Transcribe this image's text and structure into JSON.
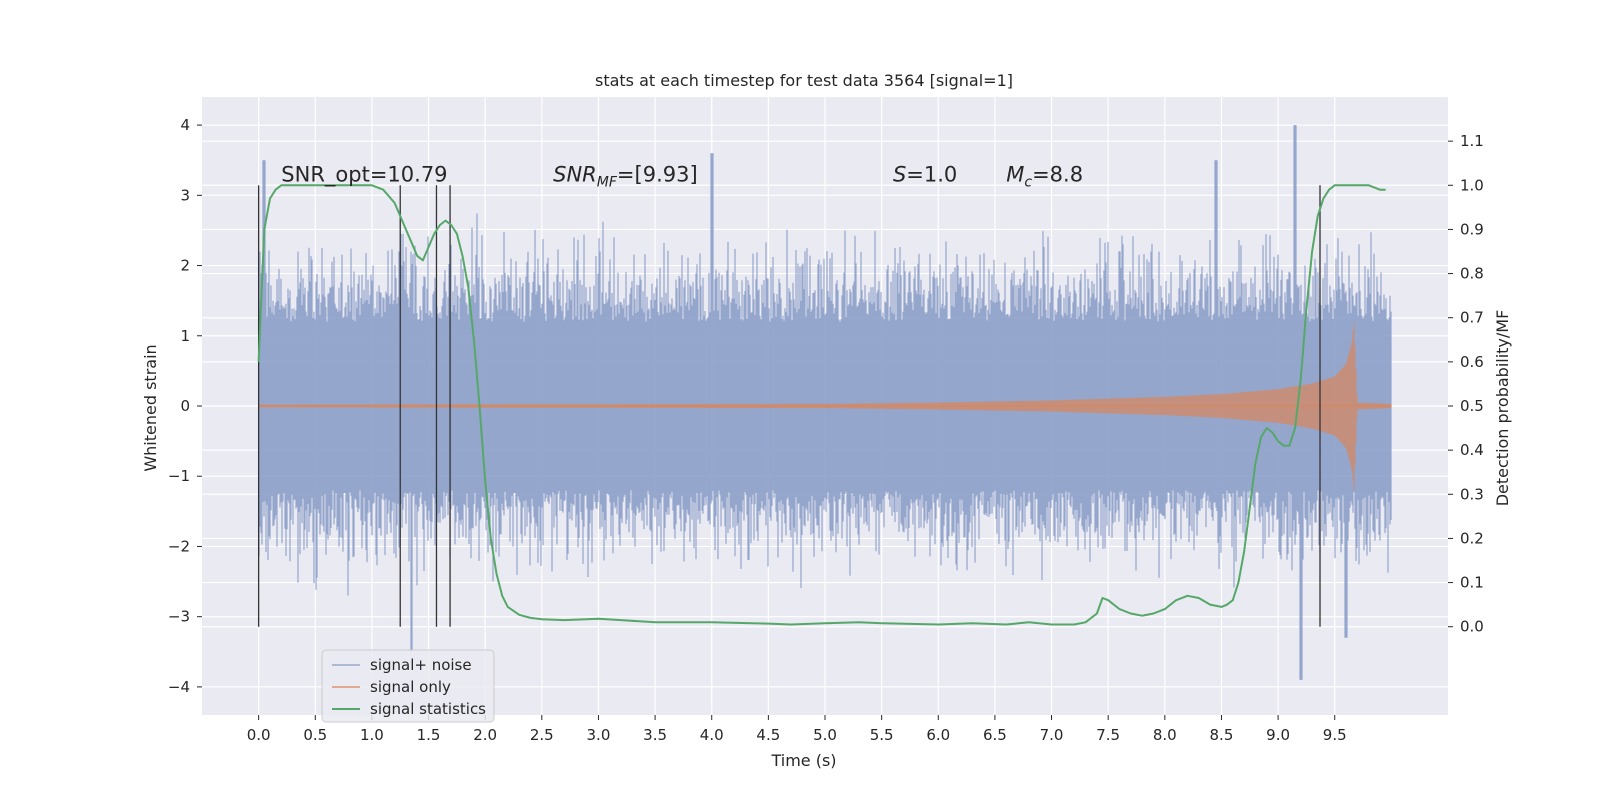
{
  "chart_data": {
    "type": "line",
    "title": "stats at each timestep for test data 3564 [signal=1]",
    "xlabel": "Time (s)",
    "ylabel_left": "Whitened strain",
    "ylabel_right": "Detection probability/MF",
    "xlim": [
      -0.5,
      10.5
    ],
    "ylim_left": [
      -4.4,
      4.4
    ],
    "ylim_right": [
      -0.2,
      1.2
    ],
    "xticks": [
      0.0,
      0.5,
      1.0,
      1.5,
      2.0,
      2.5,
      3.0,
      3.5,
      4.0,
      4.5,
      5.0,
      5.5,
      6.0,
      6.5,
      7.0,
      7.5,
      8.0,
      8.5,
      9.0,
      9.5
    ],
    "xtick_labels": [
      "0.0",
      "0.5",
      "1.0",
      "1.5",
      "2.0",
      "2.5",
      "3.0",
      "3.5",
      "4.0",
      "4.5",
      "5.0",
      "5.5",
      "6.0",
      "6.5",
      "7.0",
      "7.5",
      "8.0",
      "8.5",
      "9.0",
      "9.5"
    ],
    "yticks_left": [
      -4,
      -3,
      -2,
      -1,
      0,
      1,
      2,
      3,
      4
    ],
    "ytick_labels_left": [
      "−4",
      "−3",
      "−2",
      "−1",
      "0",
      "1",
      "2",
      "3",
      "4"
    ],
    "yticks_right": [
      0.0,
      0.1,
      0.2,
      0.3,
      0.4,
      0.5,
      0.6,
      0.7,
      0.8,
      0.9,
      1.0,
      1.1
    ],
    "ytick_labels_right": [
      "0.0",
      "0.1",
      "0.2",
      "0.3",
      "0.4",
      "0.5",
      "0.6",
      "0.7",
      "0.8",
      "0.9",
      "1.0",
      "1.1"
    ],
    "grid": true,
    "legend_position": "lower-left",
    "annotations": [
      {
        "text": "SNR_opt=10.79",
        "x": 0.2,
        "y": 3.2
      },
      {
        "text": "SNR_MF=[9.93]",
        "x": 2.6,
        "y": 3.2
      },
      {
        "text": "S=1.0",
        "x": 5.6,
        "y": 3.2
      },
      {
        "text": "M_c=8.8",
        "x": 6.6,
        "y": 3.2
      }
    ],
    "vertical_lines_x": [
      0.0,
      1.25,
      1.57,
      1.69,
      9.37
    ],
    "series": [
      {
        "name": "signal+ noise",
        "color": "#8c9ec9",
        "axis": "left",
        "description_values": {
          "x_range": [
            0.0,
            10.0
          ],
          "typical_range": [
            -2.0,
            2.0
          ],
          "peaks": [
            [
              0.05,
              3.5
            ],
            [
              1.25,
              2.2
            ],
            [
              1.35,
              -3.5
            ],
            [
              4.0,
              3.6
            ],
            [
              9.15,
              4.0
            ],
            [
              9.2,
              -3.9
            ],
            [
              8.45,
              3.5
            ],
            [
              9.6,
              -3.3
            ]
          ]
        }
      },
      {
        "name": "signal only",
        "color": "#dd8452",
        "axis": "left",
        "envelope": {
          "x": [
            0.0,
            5.0,
            6.0,
            7.0,
            8.0,
            8.5,
            9.0,
            9.3,
            9.5,
            9.6,
            9.65,
            9.67,
            9.7,
            10.0
          ],
          "amplitude": [
            0.02,
            0.03,
            0.05,
            0.08,
            0.13,
            0.17,
            0.24,
            0.32,
            0.42,
            0.6,
            0.9,
            1.2,
            0.05,
            0.03
          ]
        }
      },
      {
        "name": "signal statistics",
        "color": "#55a868",
        "axis": "right",
        "x": [
          0.0,
          0.05,
          0.1,
          0.15,
          0.2,
          0.3,
          0.5,
          0.7,
          0.9,
          1.0,
          1.1,
          1.2,
          1.3,
          1.35,
          1.4,
          1.45,
          1.5,
          1.55,
          1.6,
          1.65,
          1.7,
          1.75,
          1.8,
          1.85,
          1.9,
          1.95,
          2.0,
          2.05,
          2.1,
          2.15,
          2.2,
          2.3,
          2.4,
          2.5,
          2.7,
          3.0,
          3.2,
          3.5,
          4.0,
          4.5,
          4.7,
          5.0,
          5.3,
          5.5,
          6.0,
          6.3,
          6.6,
          6.8,
          7.0,
          7.2,
          7.3,
          7.4,
          7.45,
          7.5,
          7.6,
          7.7,
          7.8,
          7.9,
          8.0,
          8.1,
          8.2,
          8.3,
          8.4,
          8.5,
          8.55,
          8.6,
          8.65,
          8.7,
          8.75,
          8.8,
          8.85,
          8.9,
          8.95,
          9.0,
          9.05,
          9.1,
          9.15,
          9.2,
          9.25,
          9.3,
          9.35,
          9.4,
          9.45,
          9.5,
          9.55,
          9.6,
          9.7,
          9.8,
          9.9,
          9.95
        ],
        "y": [
          0.6,
          0.9,
          0.97,
          0.99,
          1.0,
          1.0,
          1.0,
          1.0,
          1.0,
          1.0,
          0.99,
          0.96,
          0.9,
          0.87,
          0.84,
          0.83,
          0.86,
          0.89,
          0.91,
          0.92,
          0.91,
          0.89,
          0.84,
          0.77,
          0.65,
          0.5,
          0.33,
          0.2,
          0.12,
          0.07,
          0.045,
          0.027,
          0.02,
          0.017,
          0.015,
          0.018,
          0.015,
          0.01,
          0.01,
          0.007,
          0.005,
          0.008,
          0.01,
          0.008,
          0.005,
          0.008,
          0.005,
          0.01,
          0.005,
          0.005,
          0.01,
          0.03,
          0.065,
          0.06,
          0.04,
          0.03,
          0.025,
          0.03,
          0.04,
          0.06,
          0.07,
          0.065,
          0.05,
          0.045,
          0.05,
          0.06,
          0.1,
          0.17,
          0.27,
          0.37,
          0.43,
          0.45,
          0.44,
          0.42,
          0.41,
          0.41,
          0.45,
          0.56,
          0.72,
          0.85,
          0.93,
          0.97,
          0.99,
          1.0,
          1.0,
          1.0,
          1.0,
          1.0,
          0.99,
          0.99
        ]
      }
    ]
  }
}
